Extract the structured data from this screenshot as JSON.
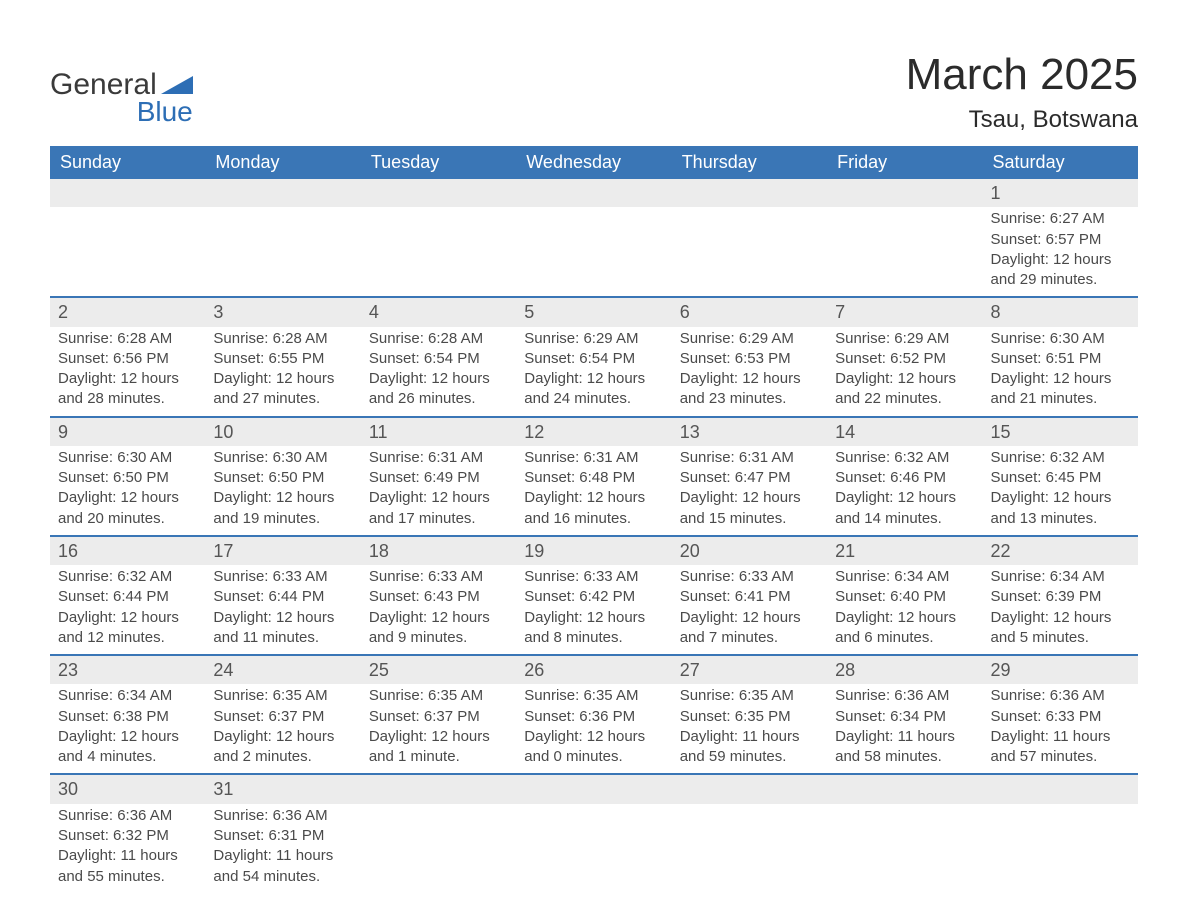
{
  "logo": {
    "text_general": "General",
    "text_blue": "Blue",
    "icon_color": "#2d6eb5"
  },
  "title": {
    "month": "March 2025",
    "location": "Tsau, Botswana"
  },
  "colors": {
    "header_bg": "#3a76b6",
    "header_text": "#ffffff",
    "daynum_bg": "#ececec",
    "row_divider": "#3a76b6",
    "body_text": "#4a4a4a",
    "page_bg": "#ffffff"
  },
  "typography": {
    "title_fontsize": 44,
    "location_fontsize": 24,
    "header_fontsize": 18,
    "daynum_fontsize": 18,
    "body_fontsize": 15
  },
  "layout": {
    "columns": 7,
    "month_start_weekday": 6
  },
  "weekdays": [
    "Sunday",
    "Monday",
    "Tuesday",
    "Wednesday",
    "Thursday",
    "Friday",
    "Saturday"
  ],
  "weeks": [
    [
      {
        "day": "",
        "sunrise": "",
        "sunset": "",
        "daylight1": "",
        "daylight2": ""
      },
      {
        "day": "",
        "sunrise": "",
        "sunset": "",
        "daylight1": "",
        "daylight2": ""
      },
      {
        "day": "",
        "sunrise": "",
        "sunset": "",
        "daylight1": "",
        "daylight2": ""
      },
      {
        "day": "",
        "sunrise": "",
        "sunset": "",
        "daylight1": "",
        "daylight2": ""
      },
      {
        "day": "",
        "sunrise": "",
        "sunset": "",
        "daylight1": "",
        "daylight2": ""
      },
      {
        "day": "",
        "sunrise": "",
        "sunset": "",
        "daylight1": "",
        "daylight2": ""
      },
      {
        "day": "1",
        "sunrise": "Sunrise: 6:27 AM",
        "sunset": "Sunset: 6:57 PM",
        "daylight1": "Daylight: 12 hours",
        "daylight2": "and 29 minutes."
      }
    ],
    [
      {
        "day": "2",
        "sunrise": "Sunrise: 6:28 AM",
        "sunset": "Sunset: 6:56 PM",
        "daylight1": "Daylight: 12 hours",
        "daylight2": "and 28 minutes."
      },
      {
        "day": "3",
        "sunrise": "Sunrise: 6:28 AM",
        "sunset": "Sunset: 6:55 PM",
        "daylight1": "Daylight: 12 hours",
        "daylight2": "and 27 minutes."
      },
      {
        "day": "4",
        "sunrise": "Sunrise: 6:28 AM",
        "sunset": "Sunset: 6:54 PM",
        "daylight1": "Daylight: 12 hours",
        "daylight2": "and 26 minutes."
      },
      {
        "day": "5",
        "sunrise": "Sunrise: 6:29 AM",
        "sunset": "Sunset: 6:54 PM",
        "daylight1": "Daylight: 12 hours",
        "daylight2": "and 24 minutes."
      },
      {
        "day": "6",
        "sunrise": "Sunrise: 6:29 AM",
        "sunset": "Sunset: 6:53 PM",
        "daylight1": "Daylight: 12 hours",
        "daylight2": "and 23 minutes."
      },
      {
        "day": "7",
        "sunrise": "Sunrise: 6:29 AM",
        "sunset": "Sunset: 6:52 PM",
        "daylight1": "Daylight: 12 hours",
        "daylight2": "and 22 minutes."
      },
      {
        "day": "8",
        "sunrise": "Sunrise: 6:30 AM",
        "sunset": "Sunset: 6:51 PM",
        "daylight1": "Daylight: 12 hours",
        "daylight2": "and 21 minutes."
      }
    ],
    [
      {
        "day": "9",
        "sunrise": "Sunrise: 6:30 AM",
        "sunset": "Sunset: 6:50 PM",
        "daylight1": "Daylight: 12 hours",
        "daylight2": "and 20 minutes."
      },
      {
        "day": "10",
        "sunrise": "Sunrise: 6:30 AM",
        "sunset": "Sunset: 6:50 PM",
        "daylight1": "Daylight: 12 hours",
        "daylight2": "and 19 minutes."
      },
      {
        "day": "11",
        "sunrise": "Sunrise: 6:31 AM",
        "sunset": "Sunset: 6:49 PM",
        "daylight1": "Daylight: 12 hours",
        "daylight2": "and 17 minutes."
      },
      {
        "day": "12",
        "sunrise": "Sunrise: 6:31 AM",
        "sunset": "Sunset: 6:48 PM",
        "daylight1": "Daylight: 12 hours",
        "daylight2": "and 16 minutes."
      },
      {
        "day": "13",
        "sunrise": "Sunrise: 6:31 AM",
        "sunset": "Sunset: 6:47 PM",
        "daylight1": "Daylight: 12 hours",
        "daylight2": "and 15 minutes."
      },
      {
        "day": "14",
        "sunrise": "Sunrise: 6:32 AM",
        "sunset": "Sunset: 6:46 PM",
        "daylight1": "Daylight: 12 hours",
        "daylight2": "and 14 minutes."
      },
      {
        "day": "15",
        "sunrise": "Sunrise: 6:32 AM",
        "sunset": "Sunset: 6:45 PM",
        "daylight1": "Daylight: 12 hours",
        "daylight2": "and 13 minutes."
      }
    ],
    [
      {
        "day": "16",
        "sunrise": "Sunrise: 6:32 AM",
        "sunset": "Sunset: 6:44 PM",
        "daylight1": "Daylight: 12 hours",
        "daylight2": "and 12 minutes."
      },
      {
        "day": "17",
        "sunrise": "Sunrise: 6:33 AM",
        "sunset": "Sunset: 6:44 PM",
        "daylight1": "Daylight: 12 hours",
        "daylight2": "and 11 minutes."
      },
      {
        "day": "18",
        "sunrise": "Sunrise: 6:33 AM",
        "sunset": "Sunset: 6:43 PM",
        "daylight1": "Daylight: 12 hours",
        "daylight2": "and 9 minutes."
      },
      {
        "day": "19",
        "sunrise": "Sunrise: 6:33 AM",
        "sunset": "Sunset: 6:42 PM",
        "daylight1": "Daylight: 12 hours",
        "daylight2": "and 8 minutes."
      },
      {
        "day": "20",
        "sunrise": "Sunrise: 6:33 AM",
        "sunset": "Sunset: 6:41 PM",
        "daylight1": "Daylight: 12 hours",
        "daylight2": "and 7 minutes."
      },
      {
        "day": "21",
        "sunrise": "Sunrise: 6:34 AM",
        "sunset": "Sunset: 6:40 PM",
        "daylight1": "Daylight: 12 hours",
        "daylight2": "and 6 minutes."
      },
      {
        "day": "22",
        "sunrise": "Sunrise: 6:34 AM",
        "sunset": "Sunset: 6:39 PM",
        "daylight1": "Daylight: 12 hours",
        "daylight2": "and 5 minutes."
      }
    ],
    [
      {
        "day": "23",
        "sunrise": "Sunrise: 6:34 AM",
        "sunset": "Sunset: 6:38 PM",
        "daylight1": "Daylight: 12 hours",
        "daylight2": "and 4 minutes."
      },
      {
        "day": "24",
        "sunrise": "Sunrise: 6:35 AM",
        "sunset": "Sunset: 6:37 PM",
        "daylight1": "Daylight: 12 hours",
        "daylight2": "and 2 minutes."
      },
      {
        "day": "25",
        "sunrise": "Sunrise: 6:35 AM",
        "sunset": "Sunset: 6:37 PM",
        "daylight1": "Daylight: 12 hours",
        "daylight2": "and 1 minute."
      },
      {
        "day": "26",
        "sunrise": "Sunrise: 6:35 AM",
        "sunset": "Sunset: 6:36 PM",
        "daylight1": "Daylight: 12 hours",
        "daylight2": "and 0 minutes."
      },
      {
        "day": "27",
        "sunrise": "Sunrise: 6:35 AM",
        "sunset": "Sunset: 6:35 PM",
        "daylight1": "Daylight: 11 hours",
        "daylight2": "and 59 minutes."
      },
      {
        "day": "28",
        "sunrise": "Sunrise: 6:36 AM",
        "sunset": "Sunset: 6:34 PM",
        "daylight1": "Daylight: 11 hours",
        "daylight2": "and 58 minutes."
      },
      {
        "day": "29",
        "sunrise": "Sunrise: 6:36 AM",
        "sunset": "Sunset: 6:33 PM",
        "daylight1": "Daylight: 11 hours",
        "daylight2": "and 57 minutes."
      }
    ],
    [
      {
        "day": "30",
        "sunrise": "Sunrise: 6:36 AM",
        "sunset": "Sunset: 6:32 PM",
        "daylight1": "Daylight: 11 hours",
        "daylight2": "and 55 minutes."
      },
      {
        "day": "31",
        "sunrise": "Sunrise: 6:36 AM",
        "sunset": "Sunset: 6:31 PM",
        "daylight1": "Daylight: 11 hours",
        "daylight2": "and 54 minutes."
      },
      {
        "day": "",
        "sunrise": "",
        "sunset": "",
        "daylight1": "",
        "daylight2": ""
      },
      {
        "day": "",
        "sunrise": "",
        "sunset": "",
        "daylight1": "",
        "daylight2": ""
      },
      {
        "day": "",
        "sunrise": "",
        "sunset": "",
        "daylight1": "",
        "daylight2": ""
      },
      {
        "day": "",
        "sunrise": "",
        "sunset": "",
        "daylight1": "",
        "daylight2": ""
      },
      {
        "day": "",
        "sunrise": "",
        "sunset": "",
        "daylight1": "",
        "daylight2": ""
      }
    ]
  ]
}
